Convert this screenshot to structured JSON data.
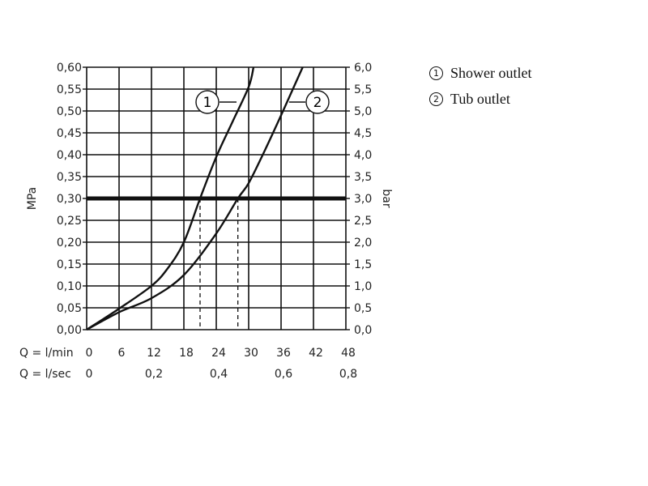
{
  "chart_data": {
    "type": "line",
    "title": "",
    "xlabel": "Q = l/min",
    "xlabel2": "Q = l/sec",
    "ylabel": "MPa",
    "ylabel2": "bar",
    "xlim": [
      0,
      48
    ],
    "ylim": [
      0,
      0.6
    ],
    "grid": true,
    "x_ticks": [
      "0",
      "6",
      "12",
      "18",
      "24",
      "30",
      "36",
      "42",
      "48"
    ],
    "x2_ticks": [
      {
        "value": 0,
        "label": "0"
      },
      {
        "value": 12,
        "label": "0,2"
      },
      {
        "value": 24,
        "label": "0,4"
      },
      {
        "value": 36,
        "label": "0,6"
      },
      {
        "value": 48,
        "label": "0,8"
      }
    ],
    "y_ticks": [
      "0,00",
      "0,05",
      "0,10",
      "0,15",
      "0,20",
      "0,25",
      "0,30",
      "0,35",
      "0,40",
      "0,45",
      "0,50",
      "0,55",
      "0,60"
    ],
    "y2_ticks": [
      "0,0",
      "0,5",
      "1,0",
      "1,5",
      "2,0",
      "2,5",
      "3,0",
      "3,5",
      "4,0",
      "4,5",
      "5,0",
      "5,5",
      "6,0"
    ],
    "reference_line": {
      "y": 0.3,
      "label": "3,0 bar"
    },
    "drop_lines": [
      21,
      28
    ],
    "series": [
      {
        "name": "Shower outlet",
        "marker": "1",
        "x": [
          0,
          6,
          12,
          15,
          18,
          21,
          24,
          27,
          30,
          30.9
        ],
        "y": [
          0,
          0.048,
          0.1,
          0.14,
          0.2,
          0.3,
          0.395,
          0.475,
          0.555,
          0.6
        ]
      },
      {
        "name": "Tub outlet",
        "marker": "2",
        "x": [
          0,
          6,
          12,
          18,
          24,
          28,
          30,
          33,
          36,
          40
        ],
        "y": [
          0,
          0.04,
          0.072,
          0.125,
          0.22,
          0.3,
          0.335,
          0.41,
          0.49,
          0.6
        ]
      }
    ],
    "legend": {
      "placement": "right",
      "entries": [
        {
          "marker": "①",
          "label": "Shower outlet"
        },
        {
          "marker": "②",
          "label": "Tub outlet"
        }
      ]
    }
  }
}
